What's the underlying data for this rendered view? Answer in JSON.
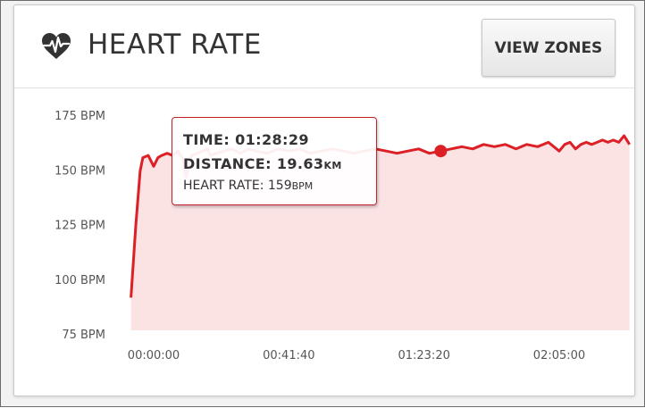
{
  "header": {
    "title": "HEART RATE",
    "view_zones_label": "VIEW ZONES"
  },
  "icons": {
    "heart": "heart-rate-icon"
  },
  "colors": {
    "line": "#dd1f26",
    "fill": "#fbe3e4",
    "tooltip_border": "#c4202a"
  },
  "tooltip": {
    "time_label": "TIME:",
    "time_value": "01:28:29",
    "distance_label": "DISTANCE:",
    "distance_value": "19.63",
    "distance_unit": "KM",
    "hr_label": "HEART RATE:",
    "hr_value": "159",
    "hr_unit": "BPM"
  },
  "chart_data": {
    "type": "area",
    "title": "HEART RATE",
    "xlabel": "",
    "ylabel": "",
    "y_unit": "BPM",
    "ylim": [
      75,
      175
    ],
    "y_ticks": [
      75,
      100,
      125,
      150,
      175
    ],
    "y_tick_labels": [
      "75 BPM",
      "100 BPM",
      "125 BPM",
      "150 BPM",
      "175 BPM"
    ],
    "xlim_seconds": [
      0,
      9000
    ],
    "x_tick_labels": [
      "00:00:00",
      "00:41:40",
      "01:23:20",
      "02:05:00"
    ],
    "x_ticks_seconds": [
      0,
      2500,
      5000,
      7500
    ],
    "grid": false,
    "highlight": {
      "time": "01:28:29",
      "x_seconds": 5309,
      "y": 159
    },
    "series": [
      {
        "x": [
          -420,
          -330,
          -250,
          -200,
          -100,
          0,
          80,
          150,
          250,
          350,
          450,
          550,
          600,
          700,
          800,
          900,
          1000,
          1050,
          1150,
          1300,
          1450,
          1600,
          1750,
          1900,
          2100,
          2300,
          2500,
          2700,
          2900,
          3100,
          3300,
          3500,
          3700,
          3900,
          4100,
          4300,
          4500,
          4700,
          4900,
          5100,
          5309,
          5500,
          5700,
          5900,
          6100,
          6300,
          6500,
          6700,
          6900,
          7100,
          7300,
          7500,
          7600,
          7700,
          7800,
          7900,
          8000,
          8100,
          8200,
          8300,
          8400,
          8500,
          8600,
          8700,
          8800
        ],
        "y": [
          92,
          125,
          150,
          156,
          157,
          152,
          156,
          157,
          158,
          157,
          159,
          155,
          147,
          157,
          158,
          159,
          160,
          157,
          158,
          159,
          160,
          158,
          160,
          159,
          158,
          160,
          159,
          160,
          158,
          159,
          160,
          159,
          158,
          159,
          160,
          159,
          158,
          159,
          160,
          158,
          159,
          160,
          161,
          160,
          162,
          161,
          162,
          160,
          162,
          161,
          163,
          159,
          162,
          163,
          160,
          162,
          163,
          162,
          163,
          164,
          163,
          164,
          163,
          166,
          162
        ]
      }
    ]
  }
}
